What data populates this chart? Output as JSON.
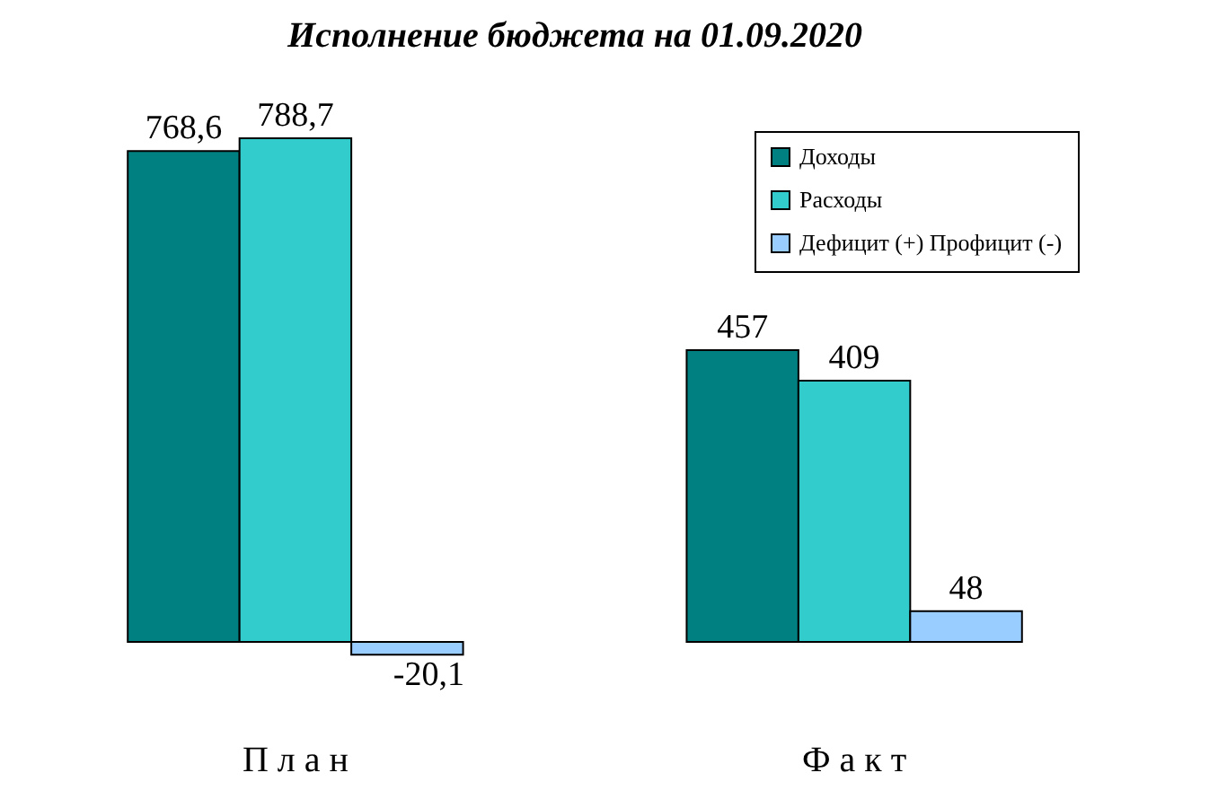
{
  "chart_data": {
    "type": "bar",
    "title": "Исполнение бюджета на 01.09.2020",
    "categories": [
      "П л а н",
      "Ф а к т"
    ],
    "series": [
      {
        "name": "Доходы",
        "color": "#008080",
        "values": [
          768.6,
          457
        ],
        "value_labels": [
          "768,6",
          "457"
        ]
      },
      {
        "name": "Расходы",
        "color": "#33cccc",
        "values": [
          788.7,
          409
        ],
        "value_labels": [
          "788,7",
          "409"
        ]
      },
      {
        "name": "Дефицит (+) Профицит (-)",
        "color": "#99ccff",
        "values": [
          -20.1,
          48
        ],
        "value_labels": [
          "-20,1",
          "48"
        ]
      }
    ],
    "legend": "top right"
  }
}
